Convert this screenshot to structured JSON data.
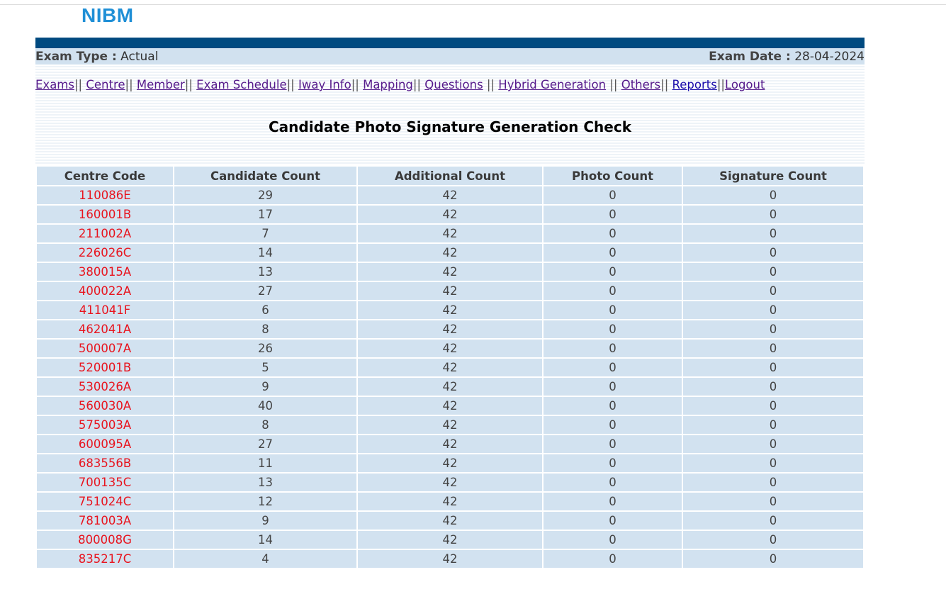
{
  "brand": {
    "logo_text": "NIBM"
  },
  "info": {
    "exam_type_label": "Exam Type :",
    "exam_type_value": "Actual",
    "exam_date_label": "Exam Date :",
    "exam_date_value": "28-04-2024"
  },
  "nav": {
    "items": [
      {
        "label": "Exams"
      },
      {
        "label": "Centre"
      },
      {
        "label": "Member"
      },
      {
        "label": "Exam Schedule"
      },
      {
        "label": "Iway Info"
      },
      {
        "label": "Mapping"
      },
      {
        "label": "Questions"
      },
      {
        "label": "Hybrid Generation"
      },
      {
        "label": "Others"
      },
      {
        "label": "Reports"
      },
      {
        "label": "Logout"
      }
    ],
    "separator": "||"
  },
  "page_title": "Candidate Photo Signature Generation Check",
  "table": {
    "headers": [
      "Centre Code",
      "Candidate Count",
      "Additional Count",
      "Photo Count",
      "Signature Count"
    ],
    "rows": [
      [
        "110086E",
        "29",
        "42",
        "0",
        "0"
      ],
      [
        "160001B",
        "17",
        "42",
        "0",
        "0"
      ],
      [
        "211002A",
        "7",
        "42",
        "0",
        "0"
      ],
      [
        "226026C",
        "14",
        "42",
        "0",
        "0"
      ],
      [
        "380015A",
        "13",
        "42",
        "0",
        "0"
      ],
      [
        "400022A",
        "27",
        "42",
        "0",
        "0"
      ],
      [
        "411041F",
        "6",
        "42",
        "0",
        "0"
      ],
      [
        "462041A",
        "8",
        "42",
        "0",
        "0"
      ],
      [
        "500007A",
        "26",
        "42",
        "0",
        "0"
      ],
      [
        "520001B",
        "5",
        "42",
        "0",
        "0"
      ],
      [
        "530026A",
        "9",
        "42",
        "0",
        "0"
      ],
      [
        "560030A",
        "40",
        "42",
        "0",
        "0"
      ],
      [
        "575003A",
        "8",
        "42",
        "0",
        "0"
      ],
      [
        "600095A",
        "27",
        "42",
        "0",
        "0"
      ],
      [
        "683556B",
        "11",
        "42",
        "0",
        "0"
      ],
      [
        "700135C",
        "13",
        "42",
        "0",
        "0"
      ],
      [
        "751024C",
        "12",
        "42",
        "0",
        "0"
      ],
      [
        "781003A",
        "9",
        "42",
        "0",
        "0"
      ],
      [
        "800008G",
        "14",
        "42",
        "0",
        "0"
      ],
      [
        "835217C",
        "4",
        "42",
        "0",
        "0"
      ]
    ]
  },
  "colors": {
    "brand_blue": "#1f8fd6",
    "header_bar": "#004a80",
    "cell_bg": "#d2e2f0",
    "centre_code_text": "#e8141e",
    "visited_link": "#551a8b",
    "unvisited_link": "#1a0dab"
  }
}
